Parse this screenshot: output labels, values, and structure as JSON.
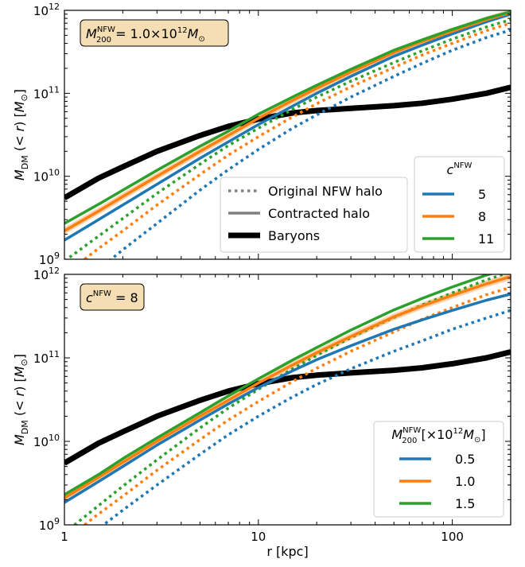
{
  "chart_data": [
    {
      "type": "line",
      "xscale": "log",
      "yscale": "log",
      "xlim": [
        1,
        200
      ],
      "ylim": [
        1000000000.0,
        1000000000000.0
      ],
      "ylabel": "M_DM (< r) [M_⊙]",
      "xlabel": "",
      "annotation": {
        "text": "M_200^NFW = 1.0×10^12 M_⊙",
        "base": "M",
        "sup": "NFW",
        "sub": "200",
        "rest_parts": [
          "= 1.0×10",
          "12",
          "M",
          "⊙"
        ]
      },
      "xticks": [
        {
          "v": 1,
          "label": ""
        },
        {
          "v": 10,
          "label": ""
        },
        {
          "v": 100,
          "label": ""
        }
      ],
      "yticks": [
        {
          "v": 1000000000.0,
          "base": "10",
          "exp": "9"
        },
        {
          "v": 10000000000.0,
          "base": "10",
          "exp": "10"
        },
        {
          "v": 100000000000.0,
          "base": "10",
          "exp": "11"
        },
        {
          "v": 1000000000000.0,
          "base": "10",
          "exp": "12"
        }
      ],
      "style_legend": [
        {
          "label": "Original NFW halo",
          "style": "dotted"
        },
        {
          "label": "Contracted halo",
          "style": "solid"
        },
        {
          "label": "Baryons",
          "style": "thick"
        }
      ],
      "series_legend_title": {
        "base": "c",
        "sup": "NFW"
      },
      "series": [
        {
          "name": "5",
          "color": "#1f77b4",
          "original": {
            "x": [
              1,
              1.5,
              2,
              3,
              5,
              7,
              10,
              15,
              20,
              30,
              50,
              70,
              100,
              150,
              200
            ],
            "y": [
              350000000.0,
              750000000.0,
              1300000000.0,
              2700000000.0,
              6800000000.0,
              12000000000.0,
              21000000000.0,
              38000000000.0,
              55000000000.0,
              90000000000.0,
              160000000000.0,
              230000000000.0,
              330000000000.0,
              470000000000.0,
              580000000000.0
            ]
          },
          "contracted": {
            "x": [
              1,
              1.5,
              2,
              3,
              5,
              7,
              10,
              15,
              20,
              30,
              50,
              70,
              100,
              150,
              200
            ],
            "y": [
              1700000000.0,
              3000000000.0,
              4500000000.0,
              8000000000.0,
              16500000000.0,
              26000000000.0,
              42000000000.0,
              70000000000.0,
              100000000000.0,
              160000000000.0,
              280000000000.0,
              380000000000.0,
              520000000000.0,
              730000000000.0,
              900000000000.0
            ]
          }
        },
        {
          "name": "8",
          "color": "#ff7f0e",
          "original": {
            "x": [
              1,
              1.5,
              2,
              3,
              5,
              7,
              10,
              15,
              20,
              30,
              50,
              70,
              100,
              150,
              200
            ],
            "y": [
              650000000.0,
              1350000000.0,
              2200000000.0,
              4500000000.0,
              10500000000.0,
              18000000000.0,
              30000000000.0,
              52000000000.0,
              75000000000.0,
              120000000000.0,
              205000000000.0,
              290000000000.0,
              400000000000.0,
              570000000000.0,
              700000000000.0
            ]
          },
          "contracted": {
            "x": [
              1,
              1.5,
              2,
              3,
              5,
              7,
              10,
              15,
              20,
              30,
              50,
              70,
              100,
              150,
              200
            ],
            "y": [
              2200000000.0,
              3800000000.0,
              5700000000.0,
              10000000000.0,
              20000000000.0,
              31000000000.0,
              50000000000.0,
              82000000000.0,
              115000000000.0,
              180000000000.0,
              310000000000.0,
              420000000000.0,
              560000000000.0,
              770000000000.0,
              940000000000.0
            ]
          },
          "band": 0.1
        },
        {
          "name": "11",
          "color": "#2ca02c",
          "original": {
            "x": [
              1,
              1.5,
              2,
              3,
              5,
              7,
              10,
              15,
              20,
              30,
              50,
              70,
              100,
              150,
              200
            ],
            "y": [
              950000000.0,
              1900000000.0,
              3100000000.0,
              6200000000.0,
              14000000000.0,
              23500000000.0,
              38000000000.0,
              64000000000.0,
              90000000000.0,
              140000000000.0,
              235000000000.0,
              325000000000.0,
              450000000000.0,
              630000000000.0,
              770000000000.0
            ]
          },
          "contracted": {
            "x": [
              1,
              1.5,
              2,
              3,
              5,
              7,
              10,
              15,
              20,
              30,
              50,
              70,
              100,
              150,
              200
            ],
            "y": [
              2700000000.0,
              4600000000.0,
              6800000000.0,
              11800000000.0,
              23000000000.0,
              35000000000.0,
              56000000000.0,
              90000000000.0,
              125000000000.0,
              195000000000.0,
              330000000000.0,
              440000000000.0,
              590000000000.0,
              800000000000.0,
              960000000000.0
            ]
          }
        }
      ],
      "baryons": {
        "x": [
          1,
          1.5,
          2,
          3,
          5,
          7,
          10,
          15,
          20,
          30,
          50,
          70,
          100,
          150,
          200
        ],
        "y": [
          5500000000.0,
          9500000000.0,
          13000000000.0,
          20000000000.0,
          31000000000.0,
          40000000000.0,
          49000000000.0,
          58000000000.0,
          62000000000.0,
          66000000000.0,
          71000000000.0,
          76000000000.0,
          85000000000.0,
          100000000000.0,
          118000000000.0
        ]
      }
    },
    {
      "type": "line",
      "xscale": "log",
      "yscale": "log",
      "xlim": [
        1,
        200
      ],
      "ylim": [
        1000000000.0,
        1000000000000.0
      ],
      "ylabel": "M_DM (< r) [M_⊙]",
      "xlabel": "r [kpc]",
      "annotation": {
        "text": "c^NFW = 8",
        "base": "c",
        "sup": "NFW",
        "rest_parts": [
          "= 8"
        ]
      },
      "xticks": [
        {
          "v": 1,
          "label": "1"
        },
        {
          "v": 10,
          "label": "10"
        },
        {
          "v": 100,
          "label": "100"
        }
      ],
      "yticks": [
        {
          "v": 1000000000.0,
          "base": "10",
          "exp": "9"
        },
        {
          "v": 10000000000.0,
          "base": "10",
          "exp": "10"
        },
        {
          "v": 100000000000.0,
          "base": "10",
          "exp": "11"
        },
        {
          "v": 1000000000000.0,
          "base": "10",
          "exp": "12"
        }
      ],
      "series_legend_title": {
        "text": "M_200^NFW [×10^12 M_⊙]",
        "base": "M",
        "sup": "NFW",
        "sub": "200",
        "rest_parts": [
          "[×10",
          "12",
          "M",
          "⊙",
          "]"
        ]
      },
      "series": [
        {
          "name": "0.5",
          "color": "#1f77b4",
          "original": {
            "x": [
              1,
              1.5,
              2,
              3,
              5,
              7,
              10,
              15,
              20,
              30,
              50,
              70,
              100,
              150,
              200
            ],
            "y": [
              450000000.0,
              900000000.0,
              1500000000.0,
              3000000000.0,
              7000000000.0,
              12000000000.0,
              20000000000.0,
              34000000000.0,
              48000000000.0,
              74000000000.0,
              120000000000.0,
              160000000000.0,
              220000000000.0,
              300000000000.0,
              370000000000.0
            ]
          },
          "contracted": {
            "x": [
              1,
              1.5,
              2,
              3,
              5,
              7,
              10,
              15,
              20,
              30,
              50,
              70,
              100,
              150,
              200
            ],
            "y": [
              1850000000.0,
              3300000000.0,
              5000000000.0,
              9000000000.0,
              18000000000.0,
              28000000000.0,
              44000000000.0,
              70000000000.0,
              95000000000.0,
              140000000000.0,
              220000000000.0,
              285000000000.0,
              370000000000.0,
              490000000000.0,
              580000000000.0
            ]
          }
        },
        {
          "name": "1.0",
          "color": "#ff7f0e",
          "original": {
            "x": [
              1,
              1.5,
              2,
              3,
              5,
              7,
              10,
              15,
              20,
              30,
              50,
              70,
              100,
              150,
              200
            ],
            "y": [
              650000000.0,
              1350000000.0,
              2200000000.0,
              4500000000.0,
              10500000000.0,
              18000000000.0,
              30000000000.0,
              52000000000.0,
              75000000000.0,
              120000000000.0,
              205000000000.0,
              290000000000.0,
              400000000000.0,
              570000000000.0,
              700000000000.0
            ]
          },
          "contracted": {
            "x": [
              1,
              1.5,
              2,
              3,
              5,
              7,
              10,
              15,
              20,
              30,
              50,
              70,
              100,
              150,
              200
            ],
            "y": [
              2100000000.0,
              3700000000.0,
              5600000000.0,
              10000000000.0,
              20000000000.0,
              31000000000.0,
              50000000000.0,
              82000000000.0,
              115000000000.0,
              180000000000.0,
              310000000000.0,
              420000000000.0,
              560000000000.0,
              770000000000.0,
              940000000000.0
            ]
          },
          "band": 0.1
        },
        {
          "name": "1.5",
          "color": "#2ca02c",
          "original": {
            "x": [
              1,
              1.5,
              2,
              3,
              5,
              7,
              10,
              15,
              20,
              30,
              50,
              70,
              100,
              150,
              200
            ],
            "y": [
              800000000.0,
              1700000000.0,
              2900000000.0,
              6000000000.0,
              14500000000.0,
              25000000000.0,
              42000000000.0,
              74000000000.0,
              107000000000.0,
              175000000000.0,
              305000000000.0,
              430000000000.0,
              600000000000.0,
              860000000000.0,
              1070000000000.0
            ]
          },
          "contracted": {
            "x": [
              1,
              1.5,
              2,
              3,
              5,
              7,
              10,
              15,
              20,
              30,
              50,
              70,
              100,
              150,
              200
            ],
            "y": [
              2300000000.0,
              4000000000.0,
              6200000000.0,
              11000000000.0,
              22000000000.0,
              35000000000.0,
              56000000000.0,
              94000000000.0,
              133000000000.0,
              215000000000.0,
              375000000000.0,
              515000000000.0,
              705000000000.0,
              980000000000.0,
              1200000000000.0
            ]
          }
        }
      ],
      "baryons": {
        "x": [
          1,
          1.5,
          2,
          3,
          5,
          7,
          10,
          15,
          20,
          30,
          50,
          70,
          100,
          150,
          200
        ],
        "y": [
          5500000000.0,
          9500000000.0,
          13000000000.0,
          20000000000.0,
          31000000000.0,
          40000000000.0,
          49000000000.0,
          58000000000.0,
          62000000000.0,
          66000000000.0,
          71000000000.0,
          76000000000.0,
          85000000000.0,
          100000000000.0,
          118000000000.0
        ]
      }
    }
  ]
}
